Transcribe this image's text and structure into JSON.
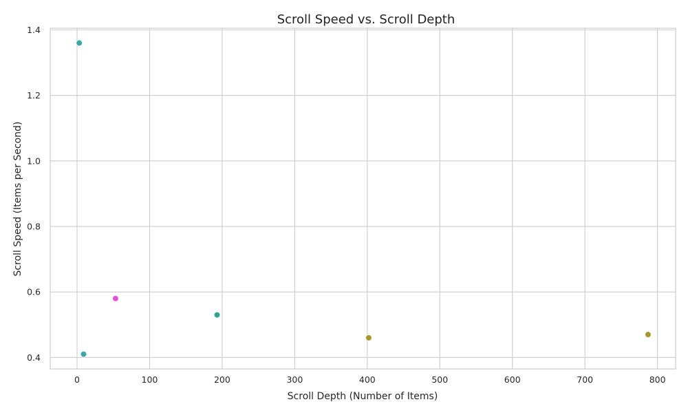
{
  "chart_data": {
    "type": "scatter",
    "title": "Scroll Speed vs. Scroll Depth",
    "xlabel": "Scroll Depth (Number of Items)",
    "ylabel": "Scroll Speed (Items per Second)",
    "xlim": [
      -37,
      825
    ],
    "ylim": [
      0.365,
      1.405
    ],
    "xticks": [
      0,
      100,
      200,
      300,
      400,
      500,
      600,
      700,
      800
    ],
    "yticks": [
      0.4,
      0.6,
      0.8,
      1.0,
      1.2,
      1.4
    ],
    "ytick_labels": [
      "0.4",
      "0.6",
      "0.8",
      "1.0",
      "1.2",
      "1.4"
    ],
    "grid": true,
    "legend": "none",
    "points": [
      {
        "x": 3,
        "y": 1.36,
        "color": "#3aa8a6"
      },
      {
        "x": 9,
        "y": 0.41,
        "color": "#3aa8a6"
      },
      {
        "x": 53,
        "y": 0.58,
        "color": "#e64fdb"
      },
      {
        "x": 193,
        "y": 0.53,
        "color": "#2ba58e"
      },
      {
        "x": 402,
        "y": 0.46,
        "color": "#a8972e"
      },
      {
        "x": 787,
        "y": 0.47,
        "color": "#a8972e"
      }
    ]
  }
}
